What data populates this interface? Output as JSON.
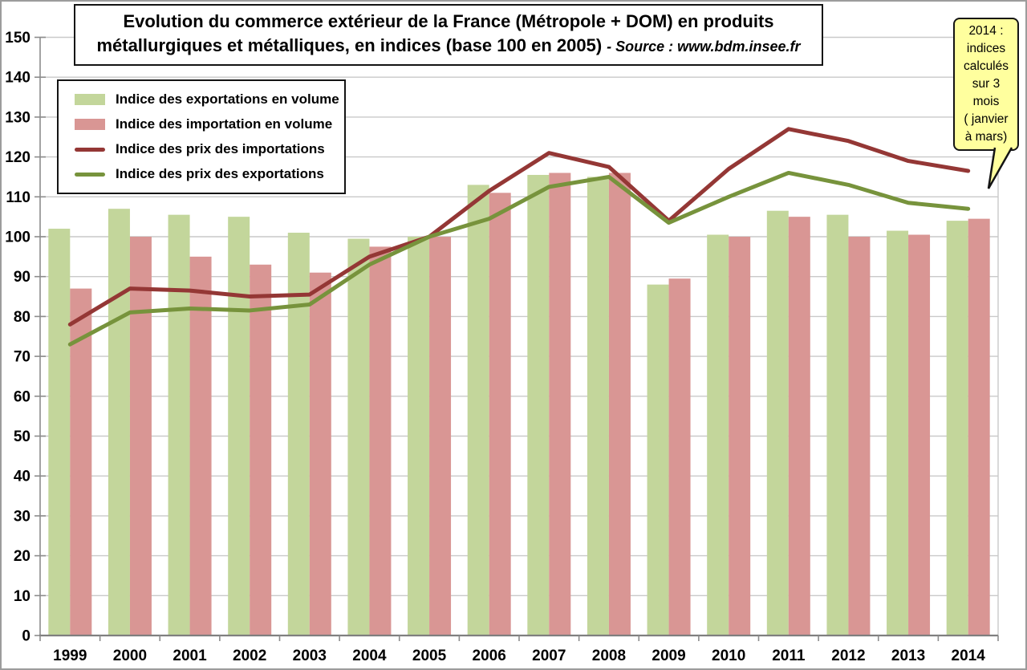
{
  "chart": {
    "title_line1": "Evolution du commerce extérieur de la France (Métropole + DOM) en produits",
    "title_line2": "métallurgiques et métalliques, en indices (base 100 en 2005)",
    "source_note": "- Source : www.bdm.insee.fr",
    "legend": {
      "items": [
        {
          "label": "Indice des exportations en volume",
          "type": "bar",
          "color": "#c3d69b"
        },
        {
          "label": "Indice des importation en volume",
          "type": "bar",
          "color": "#d99694"
        },
        {
          "label": "Indice des prix des importations",
          "type": "line",
          "color": "#943735"
        },
        {
          "label": "Indice des prix des exportations",
          "type": "line",
          "color": "#77933c"
        }
      ]
    },
    "callout": {
      "lines": [
        "2014 :",
        "indices",
        "calculés",
        "sur 3",
        "mois",
        "( janvier",
        "à mars)"
      ],
      "bg_color": "#ffff9e"
    }
  },
  "chart_data": {
    "type": "bar+line",
    "title": "Evolution du commerce extérieur de la France (Métropole + DOM) en produits métallurgiques et métalliques, en indices (base 100 en 2005)",
    "source": "www.bdm.insee.fr",
    "categories": [
      "1999",
      "2000",
      "2001",
      "2002",
      "2003",
      "2004",
      "2005",
      "2006",
      "2007",
      "2008",
      "2009",
      "2010",
      "2011",
      "2012",
      "2013",
      "2014"
    ],
    "series": [
      {
        "name": "Indice des exportations en volume",
        "type": "bar",
        "color": "#c3d69b",
        "values": [
          102,
          107,
          105.5,
          105,
          101,
          99.5,
          100,
          113,
          115.5,
          115,
          88,
          100.5,
          106.5,
          105.5,
          101.5,
          104
        ]
      },
      {
        "name": "Indice des importation en volume",
        "type": "bar",
        "color": "#d99694",
        "values": [
          87,
          100,
          95,
          93,
          91,
          97.5,
          100,
          111,
          116,
          116,
          89.5,
          100,
          105,
          100,
          100.5,
          104.5
        ]
      },
      {
        "name": "Indice des prix des importations",
        "type": "line",
        "color": "#943735",
        "values": [
          78,
          87,
          86.5,
          85,
          85.5,
          95,
          100,
          111.5,
          121,
          117.5,
          104,
          117,
          127,
          124,
          119,
          116.5
        ]
      },
      {
        "name": "Indice des prix des exportations",
        "type": "line",
        "color": "#77933c",
        "values": [
          73,
          81,
          82,
          81.5,
          83,
          93,
          100,
          104.5,
          112.5,
          115,
          103.5,
          110,
          116,
          113,
          108.5,
          107
        ]
      }
    ],
    "ylim": [
      0,
      150
    ],
    "ytick_step": 10,
    "grid": true,
    "legend_position": "top-left",
    "note": "2014 : indices calculés sur 3 mois ( janvier à mars)"
  }
}
